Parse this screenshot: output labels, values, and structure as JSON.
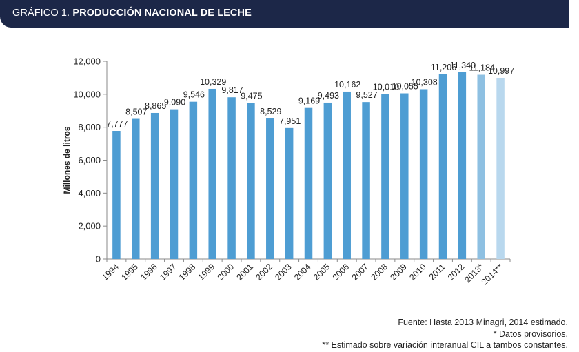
{
  "header": {
    "prefix": "GRÁFICO 1.",
    "title": "PRODUCCIÓN NACIONAL DE LECHE"
  },
  "chart_data": {
    "type": "bar",
    "title": "PRODUCCIÓN NACIONAL DE LECHE",
    "xlabel": "",
    "ylabel": "Millones de litros",
    "ylim": [
      0,
      12000
    ],
    "yticks": [
      0,
      2000,
      4000,
      6000,
      8000,
      10000,
      12000
    ],
    "ytick_labels": [
      "0",
      "2,000",
      "4,000",
      "6,000",
      "8,000",
      "10,000",
      "12,000"
    ],
    "categories": [
      "1994",
      "1995",
      "1996",
      "1997",
      "1998",
      "1999",
      "2000",
      "2001",
      "2002",
      "2003",
      "2004",
      "2005",
      "2006",
      "2007",
      "2008",
      "2009",
      "2010",
      "2011",
      "2012",
      "2013*",
      "2014**"
    ],
    "values": [
      7777,
      8507,
      8865,
      9090,
      9546,
      10329,
      9817,
      9475,
      8529,
      7951,
      9169,
      9493,
      10162,
      9527,
      10010,
      10055,
      10308,
      11206,
      11340,
      11184,
      10997
    ],
    "value_labels": [
      "7,777",
      "8,507",
      "8,865",
      "9,090",
      "9,546",
      "10,329",
      "9,817",
      "9,475",
      "8,529",
      "7,951",
      "9,169",
      "9,493",
      "10,162",
      "9,527",
      "10,010",
      "10,055",
      "10,308",
      "11,206",
      "11,340",
      "11,184",
      "10,997"
    ],
    "bar_colors": [
      "#4e9dd3",
      "#4e9dd3",
      "#4e9dd3",
      "#4e9dd3",
      "#4e9dd3",
      "#4e9dd3",
      "#4e9dd3",
      "#4e9dd3",
      "#4e9dd3",
      "#4e9dd3",
      "#4e9dd3",
      "#4e9dd3",
      "#4e9dd3",
      "#4e9dd3",
      "#4e9dd3",
      "#4e9dd3",
      "#4e9dd3",
      "#4e9dd3",
      "#4e9dd3",
      "#8ec0e2",
      "#b9d8ee"
    ],
    "grid": false,
    "legend": "none"
  },
  "footnotes": {
    "source": "Fuente: Hasta 2013 Minagri, 2014 estimado.",
    "note1": "* Datos provisorios.",
    "note2": "** Estimado sobre variación interanual CIL a tambos constantes."
  },
  "colors": {
    "header_bg": "#1c2748",
    "bar": "#4e9dd3",
    "bar_provisional": "#8ec0e2",
    "bar_estimated": "#b9d8ee"
  }
}
